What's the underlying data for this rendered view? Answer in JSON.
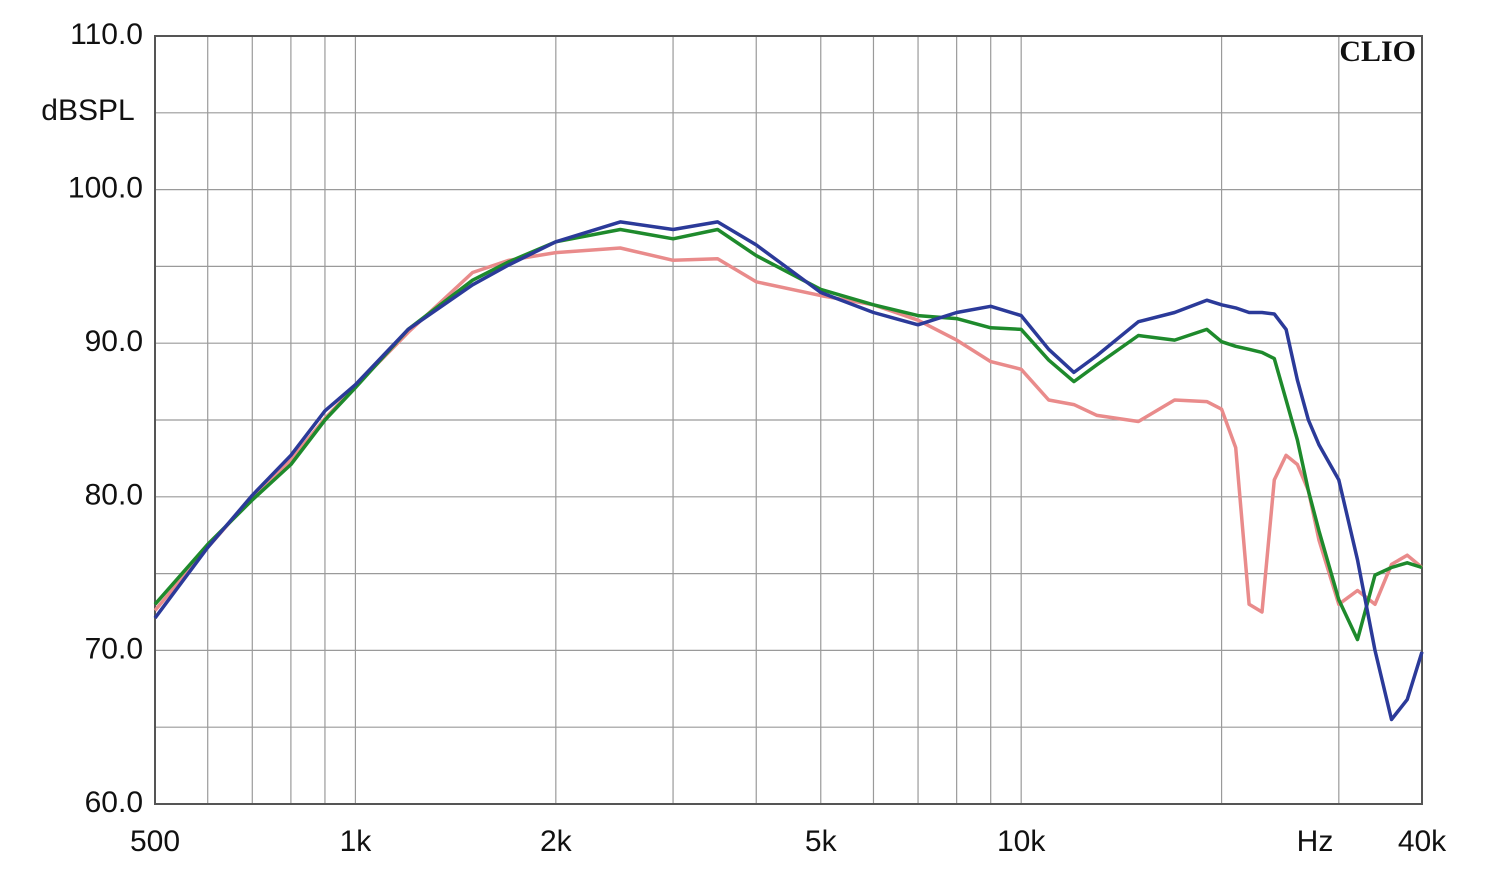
{
  "chart_data": {
    "type": "line",
    "y_label": "dBSPL",
    "x_unit": "Hz",
    "watermark": "CLIO",
    "log_x": true,
    "grid": true,
    "xlim": [
      500,
      40000
    ],
    "ylim": [
      60,
      110
    ],
    "xticks": [
      500,
      {
        "value": 1000,
        "label": "1k"
      },
      {
        "value": 2000,
        "label": "2k"
      },
      {
        "value": 5000,
        "label": "5k"
      },
      {
        "value": 10000,
        "label": "10k"
      },
      {
        "value": 40000,
        "label": "40k"
      }
    ],
    "minor_xticks": [
      600,
      700,
      800,
      900,
      3000,
      4000,
      6000,
      7000,
      8000,
      9000,
      20000,
      30000
    ],
    "yticks": [
      {
        "value": 60,
        "label": "60.0"
      },
      {
        "value": 70,
        "label": "70.0"
      },
      {
        "value": 80,
        "label": "80.0"
      },
      {
        "value": 90,
        "label": "90.0"
      },
      {
        "value": 100,
        "label": "100.0"
      },
      {
        "value": 110,
        "label": "110.0"
      }
    ],
    "minor_yticks": [
      65,
      75,
      85,
      95,
      105
    ],
    "x": [
      500,
      600,
      700,
      800,
      900,
      1000,
      1200,
      1500,
      1700,
      2000,
      2500,
      3000,
      3500,
      4000,
      5000,
      6000,
      7000,
      8000,
      9000,
      10000,
      11000,
      12000,
      13000,
      15000,
      17000,
      19000,
      20000,
      21000,
      22000,
      23000,
      24000,
      25000,
      26000,
      27000,
      28000,
      30000,
      32000,
      34000,
      36000,
      38000,
      40000
    ],
    "series": [
      {
        "color": "#e98b8b",
        "values": [
          72.6,
          76.7,
          80.0,
          82.4,
          85.1,
          87.2,
          90.7,
          94.6,
          95.4,
          95.9,
          96.2,
          95.4,
          95.5,
          94.0,
          93.1,
          92.5,
          91.5,
          90.2,
          88.8,
          88.3,
          86.3,
          86.0,
          85.3,
          84.9,
          86.3,
          86.2,
          85.7,
          83.2,
          73.0,
          72.5,
          81.1,
          82.7,
          82.1,
          80.4,
          77.2,
          73.0,
          73.9,
          73.0,
          75.6,
          76.2,
          75.4
        ]
      },
      {
        "color": "#1e8a2c",
        "values": [
          73.0,
          76.9,
          79.8,
          82.1,
          85.0,
          87.1,
          90.9,
          94.1,
          95.3,
          96.6,
          97.4,
          96.8,
          97.4,
          95.7,
          93.5,
          92.5,
          91.8,
          91.6,
          91.0,
          90.9,
          88.9,
          87.5,
          88.6,
          90.5,
          90.2,
          90.9,
          90.1,
          89.8,
          89.6,
          89.4,
          89.0,
          86.3,
          83.7,
          80.4,
          77.8,
          73.3,
          70.7,
          74.9,
          75.4,
          75.7,
          75.4
        ]
      },
      {
        "color": "#2b3a99",
        "values": [
          72.1,
          76.7,
          80.1,
          82.7,
          85.6,
          87.3,
          90.9,
          93.8,
          95.1,
          96.6,
          97.9,
          97.4,
          97.9,
          96.4,
          93.3,
          92.0,
          91.2,
          92.0,
          92.4,
          91.8,
          89.6,
          88.1,
          89.2,
          91.4,
          92.0,
          92.8,
          92.5,
          92.3,
          92.0,
          92.0,
          91.9,
          90.9,
          87.6,
          85.0,
          83.4,
          81.1,
          75.9,
          70.0,
          65.5,
          66.8,
          69.9
        ]
      }
    ]
  }
}
